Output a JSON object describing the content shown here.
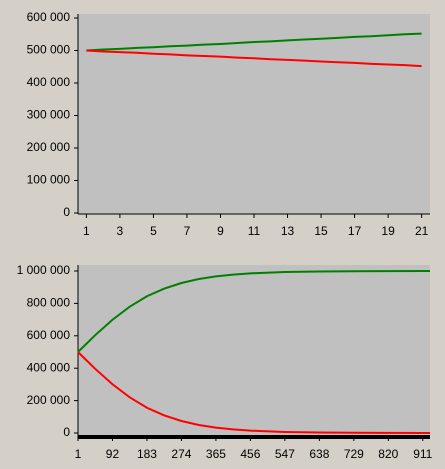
{
  "chart_data": [
    {
      "type": "line",
      "categories": [
        "1",
        null,
        "3",
        null,
        "5",
        null,
        "7",
        null,
        "9",
        null,
        "11",
        null,
        "13",
        null,
        "15",
        null,
        "17",
        null,
        "19",
        null,
        "21"
      ],
      "series": [
        {
          "color": "#008000",
          "values": [
            500000,
            503000,
            505000,
            508000,
            510000,
            513000,
            515000,
            518000,
            520000,
            523000,
            526000,
            528000,
            531000,
            534000,
            536000,
            539000,
            542000,
            544000,
            547000,
            550000,
            552000
          ]
        },
        {
          "color": "#ff0000",
          "values": [
            500000,
            497000,
            495000,
            493000,
            490000,
            488000,
            485000,
            483000,
            481000,
            478000,
            476000,
            473000,
            471000,
            469000,
            466000,
            464000,
            462000,
            459000,
            457000,
            455000,
            452000
          ]
        }
      ],
      "ylim": [
        0,
        600000
      ],
      "yticks": [
        {
          "value": 0,
          "label": "0"
        },
        {
          "value": 100000,
          "label": "100 000"
        },
        {
          "value": 200000,
          "label": "200 000"
        },
        {
          "value": 300000,
          "label": "300 000"
        },
        {
          "value": 400000,
          "label": "400 000"
        },
        {
          "value": 500000,
          "label": "500 000"
        },
        {
          "value": 600000,
          "label": "600 000"
        }
      ],
      "plot_color": "#c0c0c0"
    },
    {
      "type": "line",
      "x": [
        1,
        46,
        92,
        137,
        183,
        228,
        274,
        320,
        365,
        410,
        456,
        547,
        638,
        729,
        820,
        911,
        930
      ],
      "series": [
        {
          "color": "#008000",
          "values": [
            500000,
            603000,
            699000,
            779000,
            844000,
            891000,
            926000,
            950500,
            966900,
            977900,
            985500,
            993700,
            997300,
            998800,
            999500,
            999800,
            999830
          ]
        },
        {
          "color": "#ff0000",
          "values": [
            500000,
            397000,
            301000,
            221000,
            156000,
            109000,
            74000,
            49500,
            33100,
            22100,
            14500,
            6300,
            2700,
            1200,
            500,
            200,
            170
          ]
        }
      ],
      "xlim": [
        1,
        930
      ],
      "xticks": [
        1,
        92,
        183,
        274,
        365,
        456,
        547,
        638,
        729,
        820,
        911
      ],
      "ylim": [
        0,
        1000000
      ],
      "yticks": [
        {
          "value": 0,
          "label": "0"
        },
        {
          "value": 200000,
          "label": "200 000"
        },
        {
          "value": 400000,
          "label": "400 000"
        },
        {
          "value": 600000,
          "label": "600 000"
        },
        {
          "value": 800000,
          "label": "800 000"
        },
        {
          "value": 1000000,
          "label": "1 000 000"
        }
      ],
      "plot_color": "#c0c0c0"
    }
  ]
}
